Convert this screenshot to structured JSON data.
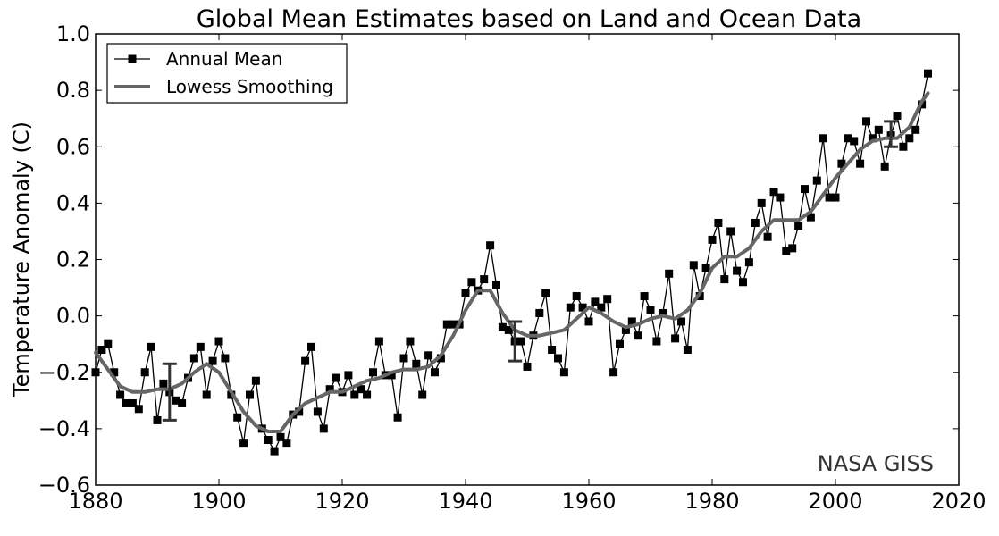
{
  "chart_data": {
    "type": "line",
    "title": "Global Mean Estimates based on Land and Ocean Data",
    "xlabel": "",
    "ylabel": "Temperature Anomaly (C)",
    "xlim": [
      1880,
      2020
    ],
    "ylim": [
      -0.6,
      1.0
    ],
    "xticks": [
      1880,
      1900,
      1920,
      1940,
      1960,
      1980,
      2000,
      2020
    ],
    "xtick_labels": [
      "1880",
      "1900",
      "1920",
      "1940",
      "1960",
      "1980",
      "2000",
      "2020"
    ],
    "yticks": [
      -0.6,
      -0.4,
      -0.2,
      0.0,
      0.2,
      0.4,
      0.6,
      0.8,
      1.0
    ],
    "ytick_labels": [
      "−0.6",
      "−0.4",
      "−0.2",
      "0.0",
      "0.2",
      "0.4",
      "0.6",
      "0.8",
      "1.0"
    ],
    "grid": false,
    "legend_position": "top-left",
    "annotation": "NASA GISS",
    "colors": {
      "annual": "#000000",
      "lowess": "#666666",
      "error_bar": "#333333"
    },
    "series": [
      {
        "name": "Annual Mean",
        "style": "line-square-markers",
        "x": [
          1880,
          1881,
          1882,
          1883,
          1884,
          1885,
          1886,
          1887,
          1888,
          1889,
          1890,
          1891,
          1892,
          1893,
          1894,
          1895,
          1896,
          1897,
          1898,
          1899,
          1900,
          1901,
          1902,
          1903,
          1904,
          1905,
          1906,
          1907,
          1908,
          1909,
          1910,
          1911,
          1912,
          1913,
          1914,
          1915,
          1916,
          1917,
          1918,
          1919,
          1920,
          1921,
          1922,
          1923,
          1924,
          1925,
          1926,
          1927,
          1928,
          1929,
          1930,
          1931,
          1932,
          1933,
          1934,
          1935,
          1936,
          1937,
          1938,
          1939,
          1940,
          1941,
          1942,
          1943,
          1944,
          1945,
          1946,
          1947,
          1948,
          1949,
          1950,
          1951,
          1952,
          1953,
          1954,
          1955,
          1956,
          1957,
          1958,
          1959,
          1960,
          1961,
          1962,
          1963,
          1964,
          1965,
          1966,
          1967,
          1968,
          1969,
          1970,
          1971,
          1972,
          1973,
          1974,
          1975,
          1976,
          1977,
          1978,
          1979,
          1980,
          1981,
          1982,
          1983,
          1984,
          1985,
          1986,
          1987,
          1988,
          1989,
          1990,
          1991,
          1992,
          1993,
          1994,
          1995,
          1996,
          1997,
          1998,
          1999,
          2000,
          2001,
          2002,
          2003,
          2004,
          2005,
          2006,
          2007,
          2008,
          2009,
          2010,
          2011,
          2012,
          2013,
          2014,
          2015
        ],
        "values": [
          -0.2,
          -0.12,
          -0.1,
          -0.2,
          -0.28,
          -0.31,
          -0.31,
          -0.33,
          -0.2,
          -0.11,
          -0.37,
          -0.24,
          -0.27,
          -0.3,
          -0.31,
          -0.22,
          -0.15,
          -0.11,
          -0.28,
          -0.16,
          -0.09,
          -0.15,
          -0.28,
          -0.36,
          -0.45,
          -0.28,
          -0.23,
          -0.4,
          -0.44,
          -0.48,
          -0.43,
          -0.45,
          -0.35,
          -0.34,
          -0.16,
          -0.11,
          -0.34,
          -0.4,
          -0.26,
          -0.22,
          -0.27,
          -0.21,
          -0.28,
          -0.26,
          -0.28,
          -0.2,
          -0.09,
          -0.21,
          -0.21,
          -0.36,
          -0.15,
          -0.09,
          -0.17,
          -0.28,
          -0.14,
          -0.2,
          -0.15,
          -0.03,
          -0.03,
          -0.03,
          0.08,
          0.12,
          0.09,
          0.13,
          0.25,
          0.11,
          -0.04,
          -0.05,
          -0.09,
          -0.09,
          -0.18,
          -0.07,
          0.01,
          0.08,
          -0.12,
          -0.15,
          -0.2,
          0.03,
          0.07,
          0.03,
          -0.02,
          0.05,
          0.03,
          0.06,
          -0.2,
          -0.1,
          -0.05,
          -0.02,
          -0.07,
          0.07,
          0.02,
          -0.09,
          0.01,
          0.15,
          -0.08,
          -0.02,
          -0.12,
          0.18,
          0.07,
          0.17,
          0.27,
          0.33,
          0.13,
          0.3,
          0.16,
          0.12,
          0.19,
          0.33,
          0.4,
          0.28,
          0.44,
          0.42,
          0.23,
          0.24,
          0.32,
          0.45,
          0.35,
          0.48,
          0.63,
          0.42,
          0.42,
          0.54,
          0.63,
          0.62,
          0.54,
          0.69,
          0.63,
          0.66,
          0.53,
          0.64,
          0.71,
          0.6,
          0.63,
          0.66,
          0.75,
          0.86
        ]
      },
      {
        "name": "Lowess Smoothing",
        "style": "thick-line",
        "x": [
          1880,
          1882,
          1884,
          1886,
          1888,
          1890,
          1892,
          1894,
          1896,
          1898,
          1900,
          1902,
          1904,
          1906,
          1908,
          1910,
          1912,
          1914,
          1916,
          1918,
          1920,
          1922,
          1924,
          1926,
          1928,
          1930,
          1932,
          1934,
          1936,
          1938,
          1940,
          1942,
          1944,
          1946,
          1948,
          1950,
          1952,
          1954,
          1956,
          1958,
          1960,
          1962,
          1964,
          1966,
          1968,
          1970,
          1972,
          1974,
          1976,
          1978,
          1980,
          1982,
          1984,
          1986,
          1988,
          1990,
          1992,
          1994,
          1996,
          1998,
          2000,
          2002,
          2004,
          2006,
          2008,
          2010,
          2012,
          2014,
          2015
        ],
        "values": [
          -0.13,
          -0.19,
          -0.25,
          -0.27,
          -0.27,
          -0.26,
          -0.26,
          -0.24,
          -0.2,
          -0.17,
          -0.2,
          -0.27,
          -0.34,
          -0.39,
          -0.41,
          -0.41,
          -0.35,
          -0.31,
          -0.29,
          -0.27,
          -0.27,
          -0.25,
          -0.23,
          -0.22,
          -0.2,
          -0.19,
          -0.19,
          -0.18,
          -0.14,
          -0.07,
          0.02,
          0.09,
          0.09,
          0.01,
          -0.05,
          -0.07,
          -0.07,
          -0.06,
          -0.05,
          -0.01,
          0.03,
          0.01,
          -0.02,
          -0.04,
          -0.03,
          -0.01,
          0.0,
          -0.01,
          0.02,
          0.08,
          0.17,
          0.21,
          0.21,
          0.24,
          0.3,
          0.34,
          0.34,
          0.34,
          0.37,
          0.43,
          0.49,
          0.54,
          0.59,
          0.62,
          0.63,
          0.63,
          0.67,
          0.76,
          0.79
        ]
      }
    ],
    "error_bars": [
      {
        "x": 1892,
        "low": -0.37,
        "high": -0.17
      },
      {
        "x": 1948,
        "low": -0.16,
        "high": -0.02
      },
      {
        "x": 2009,
        "low": 0.6,
        "high": 0.69
      }
    ]
  }
}
